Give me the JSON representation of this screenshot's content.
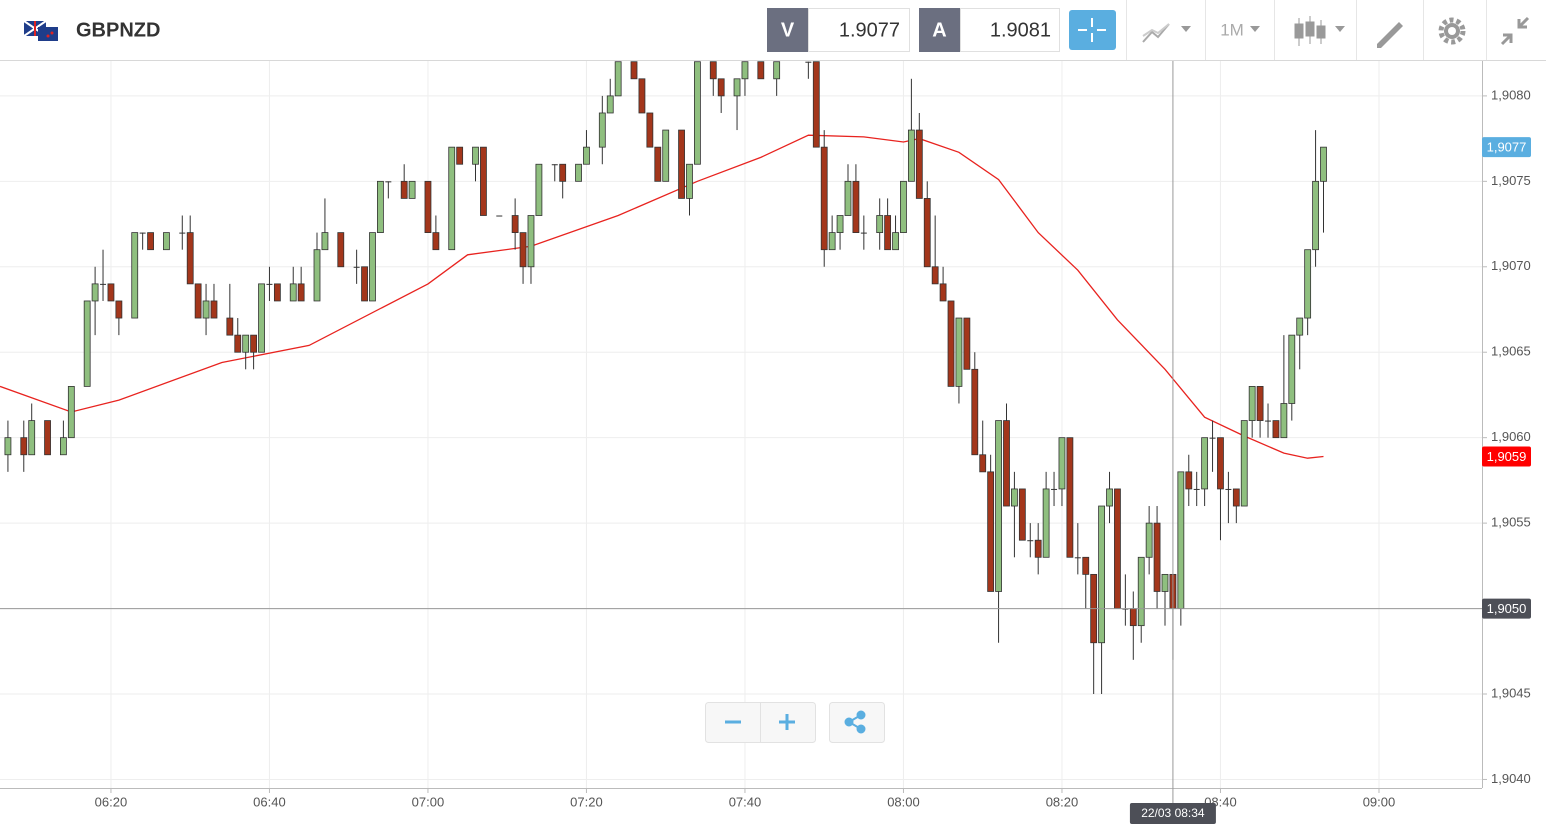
{
  "chart_data": {
    "type": "candlestick",
    "symbol": "GBPNZD",
    "sell_label": "V",
    "sell_price": 1.9077,
    "buy_label": "A",
    "buy_price": 1.9081,
    "timeframe": "1M",
    "up_color": "#8fbf7f",
    "down_color": "#a3361b",
    "grid": true,
    "xlim": [
      "06:06",
      "09:13"
    ],
    "xticks": [
      "06:20",
      "06:40",
      "07:00",
      "07:20",
      "07:40",
      "08:00",
      "08:20",
      "08:40",
      "09:00"
    ],
    "ylim": [
      1.90395,
      1.90821
    ],
    "yticks": [
      {
        "value": 1.904,
        "label": "1,9040"
      },
      {
        "value": 1.9045,
        "label": "1,9045"
      },
      {
        "value": 1.905,
        "label": "1,9050"
      },
      {
        "value": 1.9055,
        "label": "1,9055"
      },
      {
        "value": 1.906,
        "label": "1,9060"
      },
      {
        "value": 1.9065,
        "label": "1,9065"
      },
      {
        "value": 1.907,
        "label": "1,9070"
      },
      {
        "value": 1.9075,
        "label": "1,9075"
      },
      {
        "value": 1.908,
        "label": "1,9080"
      }
    ],
    "candles": {
      "x": [
        "06:07",
        "06:09",
        "06:10",
        "06:12",
        "06:14",
        "06:15",
        "06:17",
        "06:18",
        "06:19",
        "06:20",
        "06:21",
        "06:23",
        "06:24",
        "06:25",
        "06:27",
        "06:29",
        "06:30",
        "06:31",
        "06:32",
        "06:33",
        "06:35",
        "06:36",
        "06:37",
        "06:38",
        "06:39",
        "06:40",
        "06:41",
        "06:43",
        "06:44",
        "06:46",
        "06:47",
        "06:49",
        "06:51",
        "06:52",
        "06:53",
        "06:54",
        "06:55",
        "06:57",
        "06:58",
        "07:00",
        "07:01",
        "07:03",
        "07:04",
        "07:06",
        "07:07",
        "07:09",
        "07:11",
        "07:12",
        "07:13",
        "07:14",
        "07:16",
        "07:17",
        "07:19",
        "07:20",
        "07:22",
        "07:23",
        "07:24",
        "07:26",
        "07:27",
        "07:28",
        "07:29",
        "07:30",
        "07:32",
        "07:33",
        "07:34",
        "07:36",
        "07:37",
        "07:39",
        "07:40",
        "07:42",
        "07:44",
        "07:48",
        "07:49",
        "07:50",
        "07:51",
        "07:52",
        "07:53",
        "07:54",
        "07:55",
        "07:57",
        "07:58",
        "07:59",
        "08:00",
        "08:01",
        "08:02",
        "08:03",
        "08:04",
        "08:05",
        "08:06",
        "08:07",
        "08:08",
        "08:09",
        "08:10",
        "08:11",
        "08:12",
        "08:13",
        "08:14",
        "08:15",
        "08:16",
        "08:17",
        "08:18",
        "08:19",
        "08:20",
        "08:21",
        "08:22",
        "08:23",
        "08:24",
        "08:25",
        "08:26",
        "08:27",
        "08:28",
        "08:29",
        "08:30",
        "08:31",
        "08:32",
        "08:33",
        "08:34",
        "08:35",
        "08:36",
        "08:37",
        "08:38",
        "08:39",
        "08:40",
        "08:41",
        "08:42",
        "08:43",
        "08:44",
        "08:45",
        "08:46",
        "08:47",
        "08:48",
        "08:49",
        "08:50",
        "08:51",
        "08:52",
        "08:53"
      ],
      "open": [
        1.9059,
        1.906,
        1.9059,
        1.9061,
        1.9059,
        1.906,
        1.9063,
        1.9068,
        1.9069,
        1.9069,
        1.9068,
        1.9067,
        1.9072,
        1.9072,
        1.9071,
        1.9072,
        1.9072,
        1.9069,
        1.9067,
        1.9068,
        1.9067,
        1.9066,
        1.9065,
        1.9066,
        1.9065,
        1.9069,
        1.9069,
        1.9068,
        1.9069,
        1.9068,
        1.9071,
        1.9072,
        1.907,
        1.907,
        1.9068,
        1.9072,
        1.9075,
        1.9075,
        1.9074,
        1.9075,
        1.9072,
        1.9071,
        1.9077,
        1.9076,
        1.9077,
        1.9073,
        1.9073,
        1.9072,
        1.907,
        1.9073,
        1.9076,
        1.9076,
        1.9075,
        1.9076,
        1.9077,
        1.9079,
        1.908,
        1.9082,
        1.9081,
        1.9079,
        1.9077,
        1.9075,
        1.9078,
        1.9074,
        1.9076,
        1.9082,
        1.9081,
        1.908,
        1.9081,
        1.9082,
        1.9081,
        1.9082,
        1.9082,
        1.9077,
        1.9071,
        1.9072,
        1.9073,
        1.9075,
        1.9072,
        1.9072,
        1.9073,
        1.9071,
        1.9072,
        1.9075,
        1.9078,
        1.9074,
        1.907,
        1.9069,
        1.9068,
        1.9063,
        1.9067,
        1.9064,
        1.9059,
        1.9058,
        1.9051,
        1.9061,
        1.9056,
        1.9057,
        1.9054,
        1.9054,
        1.9053,
        1.9057,
        1.9057,
        1.906,
        1.9053,
        1.9053,
        1.9052,
        1.9048,
        1.9056,
        1.9057,
        1.905,
        1.905,
        1.9049,
        1.9053,
        1.9055,
        1.9051,
        1.9052,
        1.905,
        1.9058,
        1.9057,
        1.9057,
        1.906,
        1.906,
        1.9057,
        1.9057,
        1.9056,
        1.9061,
        1.9063,
        1.9061,
        1.9061,
        1.906,
        1.9062,
        1.9066,
        1.9067,
        1.9071,
        1.9075
      ],
      "high": [
        1.9061,
        1.9061,
        1.9062,
        1.9061,
        1.9061,
        1.9063,
        1.9068,
        1.907,
        1.9071,
        1.9069,
        1.9068,
        1.9072,
        1.9072,
        1.9072,
        1.9072,
        1.9073,
        1.9073,
        1.9069,
        1.9069,
        1.9069,
        1.9069,
        1.9067,
        1.9066,
        1.9066,
        1.9069,
        1.907,
        1.9069,
        1.907,
        1.907,
        1.9072,
        1.9074,
        1.9072,
        1.9071,
        1.907,
        1.9072,
        1.9075,
        1.9075,
        1.9076,
        1.9075,
        1.9075,
        1.9073,
        1.9077,
        1.9077,
        1.9077,
        1.9077,
        1.9073,
        1.9074,
        1.9072,
        1.9073,
        1.9076,
        1.9076,
        1.9076,
        1.9076,
        1.9078,
        1.908,
        1.9081,
        1.9082,
        1.9082,
        1.9081,
        1.9079,
        1.9077,
        1.9078,
        1.9078,
        1.9076,
        1.9082,
        1.9082,
        1.9081,
        1.9081,
        1.9082,
        1.9082,
        1.9082,
        1.9082,
        1.9082,
        1.9078,
        1.9073,
        1.9073,
        1.9076,
        1.9076,
        1.9073,
        1.9074,
        1.9074,
        1.9073,
        1.9075,
        1.9081,
        1.9079,
        1.9075,
        1.9073,
        1.907,
        1.9068,
        1.9067,
        1.9067,
        1.9065,
        1.9061,
        1.9059,
        1.9061,
        1.9062,
        1.9058,
        1.9057,
        1.9055,
        1.9055,
        1.9058,
        1.9058,
        1.906,
        1.906,
        1.9055,
        1.9053,
        1.9052,
        1.9056,
        1.9058,
        1.9057,
        1.9052,
        1.9051,
        1.9053,
        1.9056,
        1.9056,
        1.9052,
        1.9052,
        1.9058,
        1.9059,
        1.9058,
        1.906,
        1.9061,
        1.906,
        1.9058,
        1.9057,
        1.9061,
        1.9063,
        1.9063,
        1.9062,
        1.9061,
        1.9066,
        1.9066,
        1.9067,
        1.9071,
        1.9078,
        1.9077
      ],
      "low": [
        1.9058,
        1.9058,
        1.9059,
        1.9059,
        1.9059,
        1.906,
        1.9063,
        1.9066,
        1.9068,
        1.9068,
        1.9066,
        1.9067,
        1.9071,
        1.9071,
        1.9071,
        1.9071,
        1.9069,
        1.9067,
        1.9066,
        1.9067,
        1.9066,
        1.9065,
        1.9064,
        1.9064,
        1.9065,
        1.9068,
        1.9068,
        1.9068,
        1.9068,
        1.9068,
        1.9071,
        1.907,
        1.9069,
        1.9068,
        1.9068,
        1.9072,
        1.9074,
        1.9074,
        1.9074,
        1.9072,
        1.9071,
        1.9071,
        1.9076,
        1.9075,
        1.9073,
        1.9073,
        1.9071,
        1.9069,
        1.9069,
        1.9073,
        1.9075,
        1.9074,
        1.9075,
        1.9076,
        1.9076,
        1.9079,
        1.908,
        1.9081,
        1.9079,
        1.9077,
        1.9075,
        1.9075,
        1.9074,
        1.9073,
        1.9076,
        1.908,
        1.9079,
        1.9078,
        1.908,
        1.9081,
        1.908,
        1.9081,
        1.9077,
        1.907,
        1.9071,
        1.9071,
        1.9073,
        1.9072,
        1.9071,
        1.9071,
        1.9071,
        1.9071,
        1.9072,
        1.9075,
        1.9074,
        1.907,
        1.9069,
        1.9068,
        1.9063,
        1.9062,
        1.9064,
        1.9059,
        1.9058,
        1.9051,
        1.9048,
        1.9056,
        1.9053,
        1.9054,
        1.9053,
        1.9052,
        1.9053,
        1.9056,
        1.9056,
        1.9053,
        1.9052,
        1.905,
        1.9045,
        1.9045,
        1.9055,
        1.905,
        1.9049,
        1.9047,
        1.9048,
        1.9052,
        1.905,
        1.9049,
        1.9047,
        1.9049,
        1.9056,
        1.9056,
        1.9056,
        1.9058,
        1.9054,
        1.9055,
        1.9055,
        1.9056,
        1.906,
        1.906,
        1.906,
        1.906,
        1.906,
        1.9061,
        1.9064,
        1.9066,
        1.907,
        1.9072
      ],
      "close": [
        1.906,
        1.9059,
        1.9061,
        1.9059,
        1.906,
        1.9063,
        1.9068,
        1.9069,
        1.9069,
        1.9068,
        1.9067,
        1.9072,
        1.9072,
        1.9071,
        1.9072,
        1.9072,
        1.9069,
        1.9067,
        1.9068,
        1.9067,
        1.9066,
        1.9065,
        1.9066,
        1.9065,
        1.9069,
        1.9069,
        1.9068,
        1.9069,
        1.9068,
        1.9071,
        1.9072,
        1.907,
        1.907,
        1.9068,
        1.9072,
        1.9075,
        1.9075,
        1.9074,
        1.9075,
        1.9072,
        1.9071,
        1.9077,
        1.9076,
        1.9077,
        1.9073,
        1.9073,
        1.9072,
        1.907,
        1.9073,
        1.9076,
        1.9076,
        1.9075,
        1.9076,
        1.9077,
        1.9079,
        1.908,
        1.9082,
        1.9081,
        1.9079,
        1.9077,
        1.9075,
        1.9078,
        1.9074,
        1.9076,
        1.9082,
        1.9081,
        1.908,
        1.9081,
        1.9082,
        1.9081,
        1.9082,
        1.9082,
        1.9077,
        1.9071,
        1.9072,
        1.9073,
        1.9075,
        1.9072,
        1.9072,
        1.9073,
        1.9071,
        1.9072,
        1.9075,
        1.9078,
        1.9074,
        1.907,
        1.9069,
        1.9068,
        1.9063,
        1.9067,
        1.9064,
        1.9059,
        1.9058,
        1.9051,
        1.9061,
        1.9056,
        1.9057,
        1.9054,
        1.9054,
        1.9053,
        1.9057,
        1.9057,
        1.906,
        1.9053,
        1.9053,
        1.9052,
        1.9048,
        1.9056,
        1.9057,
        1.905,
        1.905,
        1.9049,
        1.9053,
        1.9055,
        1.9051,
        1.9052,
        1.905,
        1.9058,
        1.9057,
        1.9057,
        1.906,
        1.906,
        1.9057,
        1.9057,
        1.9056,
        1.9061,
        1.9063,
        1.9061,
        1.9061,
        1.906,
        1.9062,
        1.9066,
        1.9067,
        1.9071,
        1.9075,
        1.9077
      ]
    },
    "ma": {
      "color": "#e8231f",
      "x": [
        "06:06",
        "06:15",
        "06:21",
        "06:34",
        "06:45",
        "07:00",
        "07:05",
        "07:13",
        "07:24",
        "07:34",
        "07:42",
        "07:48",
        "07:55",
        "08:00",
        "08:02",
        "08:07",
        "08:12",
        "08:17",
        "08:22",
        "08:27",
        "08:33",
        "08:38",
        "08:43",
        "08:48",
        "08:51",
        "08:53"
      ],
      "values": [
        1.9063,
        1.90615,
        1.90622,
        1.90644,
        1.90654,
        1.9069,
        1.90707,
        1.90712,
        1.9073,
        1.9075,
        1.90764,
        1.90777,
        1.90776,
        1.90773,
        1.90775,
        1.90767,
        1.90751,
        1.9072,
        1.90698,
        1.90669,
        1.9064,
        1.90612,
        1.90601,
        1.90591,
        1.90588,
        1.90589
      ]
    },
    "price_tags": [
      {
        "value": 1.9077,
        "label": "1,9077",
        "color": "#5aaee0"
      },
      {
        "value": 1.90589,
        "label": "1,9059",
        "color": "#ff0000"
      }
    ],
    "crosshair": {
      "x": "08:34",
      "y": 1.905,
      "x_label": "22/03 08:34",
      "y_label": "1,9050"
    }
  }
}
